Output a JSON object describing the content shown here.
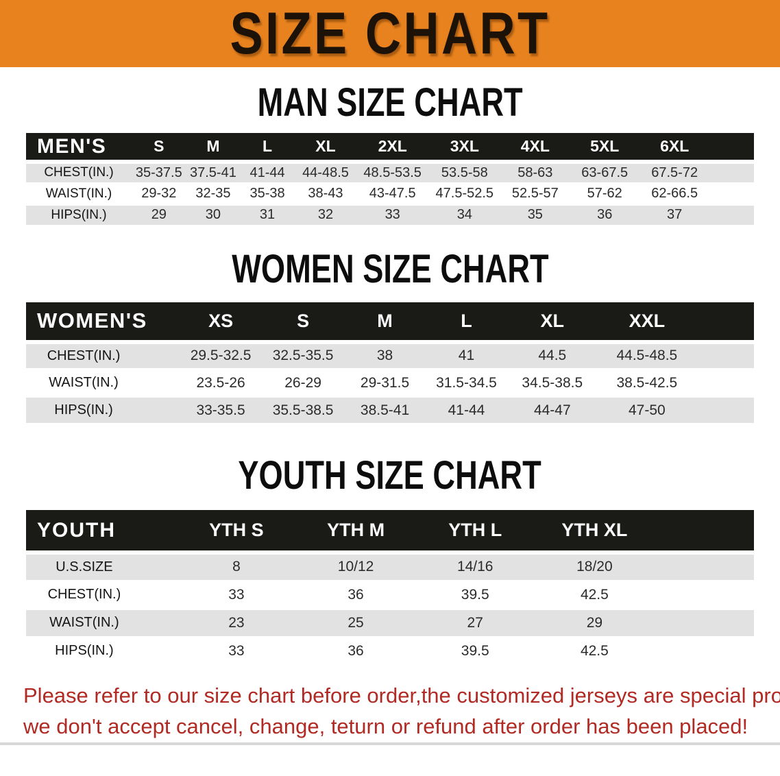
{
  "banner": {
    "title": "SIZE CHART"
  },
  "colors": {
    "banner_bg": "#E8821E",
    "table_header_bg": "#1A1A17",
    "row_shade_bg": "#E2E2E2",
    "footer_text": "#B12A24"
  },
  "sections": [
    {
      "heading": "MAN SIZE CHART",
      "table": {
        "header_label": "MEN'S",
        "sizes": [
          "S",
          "M",
          "L",
          "XL",
          "2XL",
          "3XL",
          "4XL",
          "5XL",
          "6XL"
        ],
        "rows": [
          {
            "label": "CHEST(IN.)",
            "values": [
              "35-37.5",
              "37.5-41",
              "41-44",
              "44-48.5",
              "48.5-53.5",
              "53.5-58",
              "58-63",
              "63-67.5",
              "67.5-72"
            ]
          },
          {
            "label": "WAIST(IN.)",
            "values": [
              "29-32",
              "32-35",
              "35-38",
              "38-43",
              "43-47.5",
              "47.5-52.5",
              "52.5-57",
              "57-62",
              "62-66.5"
            ]
          },
          {
            "label": "HIPS(IN.)",
            "values": [
              "29",
              "30",
              "31",
              "32",
              "33",
              "34",
              "35",
              "36",
              "37"
            ]
          }
        ]
      }
    },
    {
      "heading": "WOMEN SIZE CHART",
      "table": {
        "header_label": "WOMEN'S",
        "sizes": [
          "XS",
          "S",
          "M",
          "L",
          "XL",
          "XXL"
        ],
        "rows": [
          {
            "label": "CHEST(IN.)",
            "values": [
              "29.5-32.5",
              "32.5-35.5",
              "38",
              "41",
              "44.5",
              "44.5-48.5"
            ]
          },
          {
            "label": "WAIST(IN.)",
            "values": [
              "23.5-26",
              "26-29",
              "29-31.5",
              "31.5-34.5",
              "34.5-38.5",
              "38.5-42.5"
            ]
          },
          {
            "label": "HIPS(IN.)",
            "values": [
              "33-35.5",
              "35.5-38.5",
              "38.5-41",
              "41-44",
              "44-47",
              "47-50"
            ]
          }
        ]
      }
    },
    {
      "heading": "YOUTH SIZE CHART",
      "table": {
        "header_label": "YOUTH",
        "sizes": [
          "YTH S",
          "YTH M",
          "YTH L",
          "YTH XL"
        ],
        "rows": [
          {
            "label": "U.S.SIZE",
            "values": [
              "8",
              "10/12",
              "14/16",
              "18/20"
            ]
          },
          {
            "label": "CHEST(IN.)",
            "values": [
              "33",
              "36",
              "39.5",
              "42.5"
            ]
          },
          {
            "label": "WAIST(IN.)",
            "values": [
              "23",
              "25",
              "27",
              "29"
            ]
          },
          {
            "label": "HIPS(IN.)",
            "values": [
              "33",
              "36",
              "39.5",
              "42.5"
            ]
          }
        ]
      }
    }
  ],
  "footer_note": {
    "line1": "Please refer to our size chart before order,the customized jerseys are special products,",
    "line2": "we don't accept cancel, change, teturn or refund after order has been placed!"
  }
}
